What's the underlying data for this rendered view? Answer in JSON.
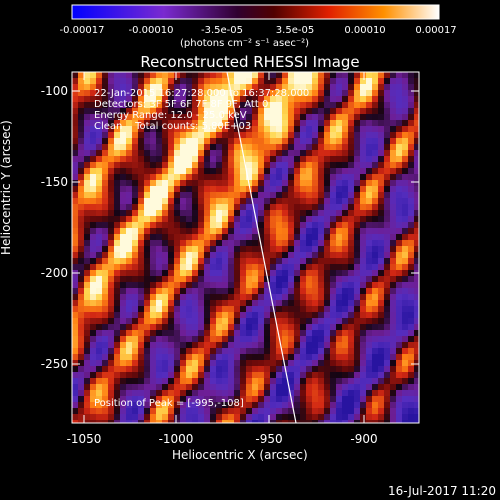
{
  "colorbar": {
    "colormap": "blue-purple-red-orange-yellow-white",
    "ticks": [
      "-0.00017",
      "-0.00010",
      "-3.5e-05",
      "3.5e-05",
      "0.00010",
      "0.00017"
    ],
    "units_label": "(photons cm⁻² s⁻¹ asec⁻²)"
  },
  "image": {
    "title": "Reconstructed RHESSI Image",
    "info_lines": [
      "22-Jan-2015 16:27:28.000 to 16:37:28.000",
      "Detectors: 3F 5F 6F 7F 8F 9F, Att 0",
      "Energy Range: 12.0 - 25.0 keV",
      "Clean    Total counts: 5.80E+03"
    ],
    "peak_label": "Position of Peak = [-995,-108]",
    "xlabel": "Heliocentric X (arcsec)",
    "ylabel": "Heliocentric Y (arcsec)",
    "xticks": [
      "-1050",
      "-1000",
      "-950",
      "-900"
    ],
    "yticks": [
      "-100",
      "-150",
      "-200",
      "-250"
    ],
    "xlim": [
      -1050,
      -935
    ],
    "ylim": [
      -282,
      -90
    ],
    "limb_line": true
  },
  "footer": {
    "timestamp": "16-Jul-2017 11:20"
  }
}
